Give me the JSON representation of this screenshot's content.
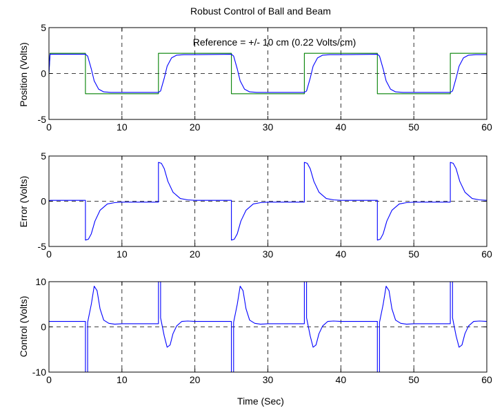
{
  "figure": {
    "title": "Robust Control of Ball and Beam",
    "xlabel": "Time (Sec)"
  },
  "colors": {
    "response": "#0000ff",
    "reference": "#008000",
    "axes": "#000000",
    "background": "#ffffff"
  },
  "chart_data": [
    {
      "type": "line",
      "ylabel": "Position (Volts)",
      "annotation": "Reference = +/- 10 cm (0.22 Volts/cm)",
      "xlim": [
        0,
        60
      ],
      "ylim": [
        -5,
        5
      ],
      "xticks": [
        0,
        10,
        20,
        30,
        40,
        50,
        60
      ],
      "yticks": [
        -5,
        0,
        5
      ],
      "grid": true,
      "zero_line": true,
      "series": [
        {
          "color": "#008000",
          "x": [
            0,
            0.15,
            5,
            5,
            15,
            15,
            25,
            25,
            35,
            35,
            45,
            45,
            55,
            55,
            60
          ],
          "y": [
            0,
            2.2,
            2.2,
            -2.2,
            -2.2,
            2.2,
            2.2,
            -2.2,
            -2.2,
            2.2,
            2.2,
            -2.2,
            -2.2,
            2.2,
            2.2
          ]
        },
        {
          "color": "#0000ff",
          "x": [
            0,
            0.15,
            5,
            5.3,
            5.8,
            6.2,
            6.8,
            7.5,
            8.5,
            10,
            15,
            15.3,
            15.8,
            16.2,
            16.8,
            17.5,
            18.5,
            20,
            25,
            25.3,
            25.8,
            26.2,
            26.8,
            27.5,
            28.5,
            30,
            35,
            35.3,
            35.8,
            36.2,
            36.8,
            37.5,
            38.5,
            40,
            45,
            45.3,
            45.8,
            46.2,
            46.8,
            47.5,
            48.5,
            50,
            55,
            55.3,
            55.8,
            56.2,
            56.8,
            57.5,
            58.5,
            60
          ],
          "y": [
            0,
            2.1,
            2.1,
            1.9,
            0.5,
            -0.8,
            -1.7,
            -2.0,
            -2.05,
            -2.05,
            -2.05,
            -1.9,
            -0.5,
            0.8,
            1.7,
            2.0,
            2.05,
            2.05,
            2.1,
            1.9,
            0.5,
            -0.8,
            -1.7,
            -2.0,
            -2.05,
            -2.05,
            -2.05,
            -1.9,
            -0.5,
            0.8,
            1.7,
            2.0,
            2.05,
            2.05,
            2.1,
            1.9,
            0.5,
            -0.8,
            -1.7,
            -2.0,
            -2.05,
            -2.05,
            -2.05,
            -1.9,
            -0.5,
            0.8,
            1.7,
            2.0,
            2.05,
            2.05
          ]
        }
      ]
    },
    {
      "type": "line",
      "ylabel": "Error (Volts)",
      "xlim": [
        0,
        60
      ],
      "ylim": [
        -5,
        5
      ],
      "xticks": [
        0,
        10,
        20,
        30,
        40,
        50,
        60
      ],
      "yticks": [
        -5,
        0,
        5
      ],
      "grid": true,
      "zero_line": true,
      "series": [
        {
          "color": "#0000ff",
          "x": [
            0,
            0.15,
            5,
            5,
            5.4,
            5.8,
            6.3,
            7,
            8,
            9,
            10,
            15,
            15,
            15.4,
            15.8,
            16.3,
            17,
            18,
            19,
            20,
            25,
            25,
            25.4,
            25.8,
            26.3,
            27,
            28,
            29,
            30,
            35,
            35,
            35.4,
            35.8,
            36.3,
            37,
            38,
            39,
            40,
            45,
            45,
            45.4,
            45.8,
            46.3,
            47,
            48,
            49,
            50,
            55,
            55,
            55.4,
            55.8,
            56.3,
            57,
            58,
            59,
            60
          ],
          "y": [
            0,
            0.1,
            0.1,
            -4.3,
            -4.2,
            -3.6,
            -2.2,
            -1.0,
            -0.3,
            -0.15,
            -0.1,
            -0.1,
            4.3,
            4.2,
            3.6,
            2.2,
            1.0,
            0.3,
            0.15,
            0.1,
            0.1,
            -4.3,
            -4.2,
            -3.6,
            -2.2,
            -1.0,
            -0.3,
            -0.15,
            -0.1,
            -0.1,
            4.3,
            4.2,
            3.6,
            2.2,
            1.0,
            0.3,
            0.15,
            0.1,
            0.1,
            -4.3,
            -4.2,
            -3.6,
            -2.2,
            -1.0,
            -0.3,
            -0.15,
            -0.1,
            -0.1,
            4.3,
            4.2,
            3.6,
            2.2,
            1.0,
            0.3,
            0.15,
            0.1
          ]
        }
      ]
    },
    {
      "type": "line",
      "ylabel": "Control (Volts)",
      "xlim": [
        0,
        60
      ],
      "ylim": [
        -10,
        10
      ],
      "xticks": [
        0,
        10,
        20,
        30,
        40,
        50,
        60
      ],
      "yticks": [
        -10,
        0,
        10
      ],
      "grid": true,
      "zero_line": true,
      "series": [
        {
          "color": "#0000ff",
          "x": [
            0,
            5,
            5,
            5.3,
            5.3,
            5.8,
            6.2,
            6.6,
            7.0,
            7.5,
            8.2,
            9,
            10,
            15,
            15,
            15.3,
            15.3,
            15.8,
            16.2,
            16.6,
            17.0,
            17.5,
            18.2,
            19,
            20,
            25,
            25,
            25.3,
            25.3,
            25.8,
            26.2,
            26.6,
            27.0,
            27.5,
            28.2,
            29,
            30,
            35,
            35,
            35.3,
            35.3,
            35.8,
            36.2,
            36.6,
            37.0,
            37.5,
            38.2,
            39,
            40,
            45,
            45,
            45.3,
            45.3,
            45.8,
            46.2,
            46.6,
            47.0,
            47.5,
            48.2,
            49,
            50,
            55,
            55,
            55.3,
            55.3,
            55.8,
            56.2,
            56.6,
            57.0,
            57.5,
            58.2,
            59,
            60
          ],
          "y": [
            1.2,
            1.2,
            -10,
            -10,
            1,
            5,
            9,
            8,
            4,
            1.5,
            0.8,
            0.6,
            0.7,
            0.7,
            10,
            10,
            2,
            -2,
            -4.5,
            -4,
            -1.5,
            0.2,
            1.2,
            1.3,
            1.2,
            1.2,
            -10,
            -10,
            1,
            5,
            9,
            8,
            4,
            1.5,
            0.8,
            0.6,
            0.7,
            0.7,
            10,
            10,
            2,
            -2,
            -4.5,
            -4,
            -1.5,
            0.2,
            1.2,
            1.3,
            1.2,
            1.2,
            -10,
            -10,
            1,
            5,
            9,
            8,
            4,
            1.5,
            0.8,
            0.6,
            0.7,
            0.7,
            10,
            10,
            2,
            -2,
            -4.5,
            -4,
            -1.5,
            0.2,
            1.2,
            1.3,
            1.2
          ]
        }
      ]
    }
  ]
}
